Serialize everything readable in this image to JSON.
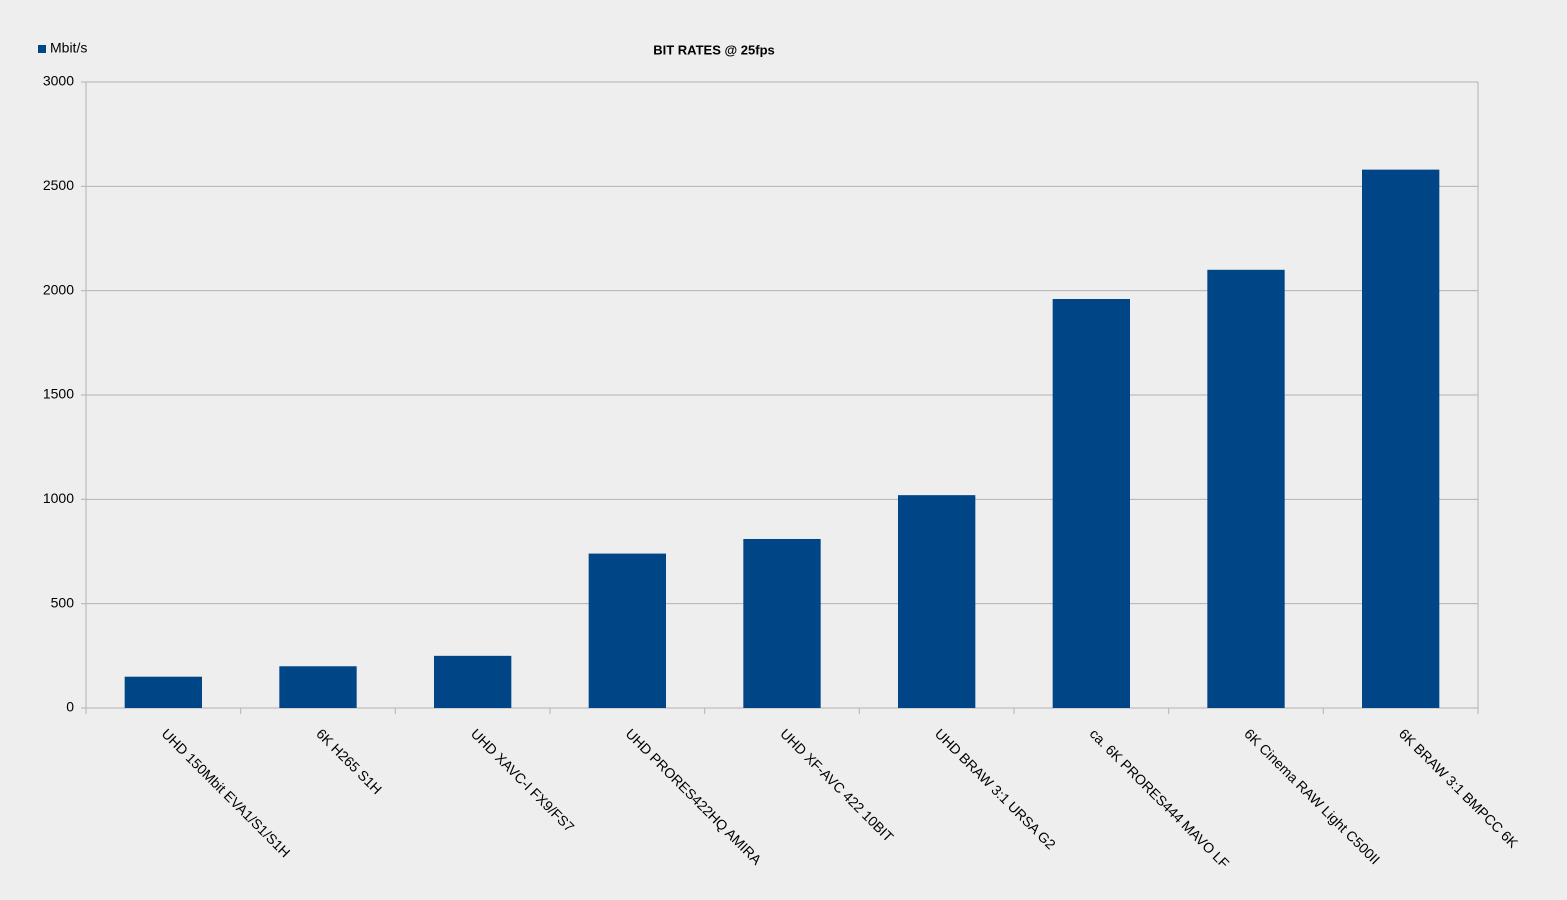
{
  "chart_data": {
    "type": "bar",
    "title": "BIT RATES @ 25fps",
    "categories": [
      "UHD 150Mbit EVA1/S1/S1H",
      "6K H265 S1H",
      "UHD XAVC-I FX9/FS7",
      "UHD PRORES422HQ AMIRA",
      "UHD XF-AVC 422 10BIT",
      "UHD BRAW 3:1 URSA G2",
      "ca. 6K PRORES444 MAVO LF",
      "6K Cinema RAW Light C500II",
      "6K BRAW 3:1 BMPCC 6K"
    ],
    "series": [
      {
        "name": "Mbit/s",
        "color": "#004586",
        "values": [
          150,
          200,
          250,
          740,
          810,
          1020,
          1960,
          2100,
          2580
        ]
      }
    ],
    "ylim": [
      0,
      3000
    ],
    "yticks": [
      0,
      500,
      1000,
      1500,
      2000,
      2500,
      3000
    ],
    "grid": true,
    "legend": "top-left"
  }
}
